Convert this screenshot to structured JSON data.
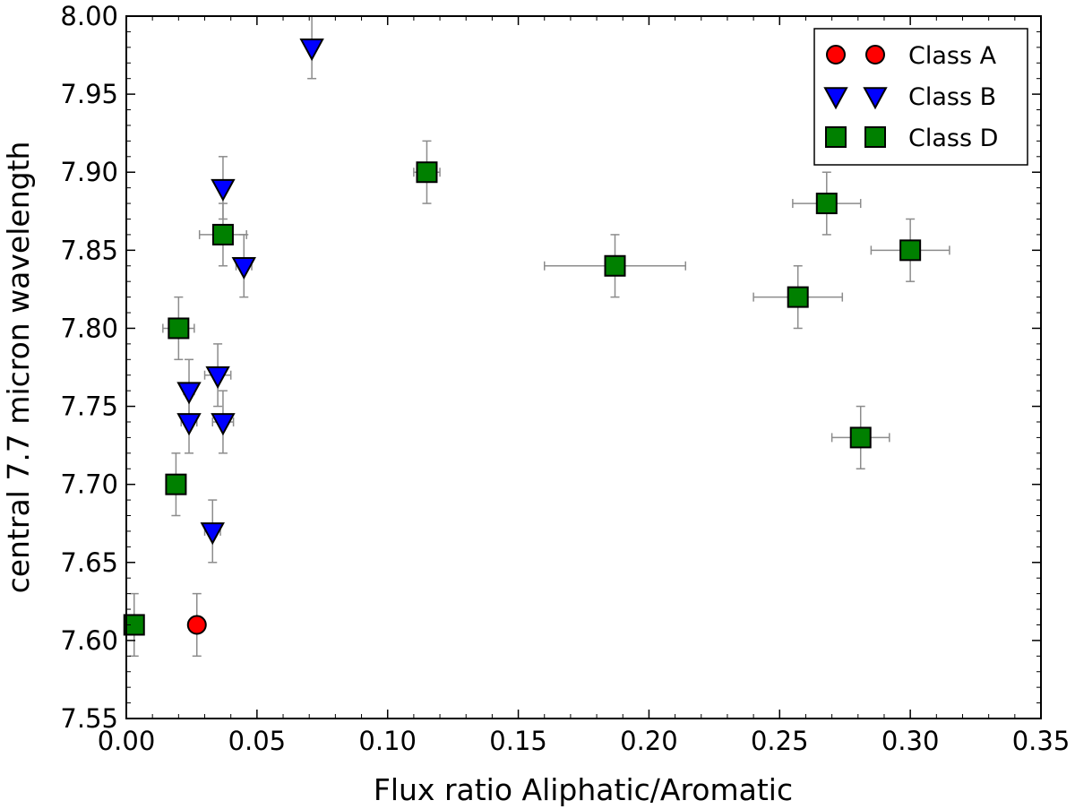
{
  "chart_data": {
    "type": "scatter",
    "title": "",
    "xlabel": "Flux ratio Aliphatic/Aromatic",
    "ylabel": "central 7.7 micron wavelength",
    "xlim": [
      0.0,
      0.35
    ],
    "ylim": [
      7.55,
      8.0
    ],
    "xticks": [
      "0.00",
      "0.05",
      "0.10",
      "0.15",
      "0.20",
      "0.25",
      "0.30",
      "0.35"
    ],
    "yticks": [
      "7.55",
      "7.60",
      "7.65",
      "7.70",
      "7.75",
      "7.80",
      "7.85",
      "7.90",
      "7.95",
      "8.00"
    ],
    "grid": false,
    "legend_position": "top-right",
    "series": [
      {
        "name": "Class A",
        "marker": "circle",
        "color": "#ff0000",
        "points": [
          {
            "x": 0.027,
            "y": 7.61,
            "xerr": 0.0,
            "yerr": 0.02
          }
        ]
      },
      {
        "name": "Class B",
        "marker": "triangle-down",
        "color": "#0000ff",
        "points": [
          {
            "x": 0.071,
            "y": 7.98,
            "xerr": 0.0,
            "yerr": 0.02
          },
          {
            "x": 0.037,
            "y": 7.89,
            "xerr": 0.0,
            "yerr": 0.02
          },
          {
            "x": 0.045,
            "y": 7.84,
            "xerr": 0.003,
            "yerr": 0.02
          },
          {
            "x": 0.035,
            "y": 7.77,
            "xerr": 0.005,
            "yerr": 0.02
          },
          {
            "x": 0.024,
            "y": 7.76,
            "xerr": 0.002,
            "yerr": 0.02
          },
          {
            "x": 0.024,
            "y": 7.74,
            "xerr": 0.003,
            "yerr": 0.02
          },
          {
            "x": 0.037,
            "y": 7.74,
            "xerr": 0.004,
            "yerr": 0.02
          },
          {
            "x": 0.033,
            "y": 7.67,
            "xerr": 0.003,
            "yerr": 0.02
          }
        ]
      },
      {
        "name": "Class D",
        "marker": "square",
        "color": "#008000",
        "points": [
          {
            "x": 0.115,
            "y": 7.9,
            "xerr": 0.005,
            "yerr": 0.02
          },
          {
            "x": 0.037,
            "y": 7.86,
            "xerr": 0.009,
            "yerr": 0.02
          },
          {
            "x": 0.02,
            "y": 7.8,
            "xerr": 0.006,
            "yerr": 0.02
          },
          {
            "x": 0.019,
            "y": 7.7,
            "xerr": 0.003,
            "yerr": 0.02
          },
          {
            "x": 0.003,
            "y": 7.61,
            "xerr": 0.003,
            "yerr": 0.02
          },
          {
            "x": 0.187,
            "y": 7.84,
            "xerr": 0.027,
            "yerr": 0.02
          },
          {
            "x": 0.257,
            "y": 7.82,
            "xerr": 0.017,
            "yerr": 0.02
          },
          {
            "x": 0.268,
            "y": 7.88,
            "xerr": 0.013,
            "yerr": 0.02
          },
          {
            "x": 0.3,
            "y": 7.85,
            "xerr": 0.015,
            "yerr": 0.02
          },
          {
            "x": 0.281,
            "y": 7.73,
            "xerr": 0.011,
            "yerr": 0.02
          }
        ]
      }
    ]
  }
}
